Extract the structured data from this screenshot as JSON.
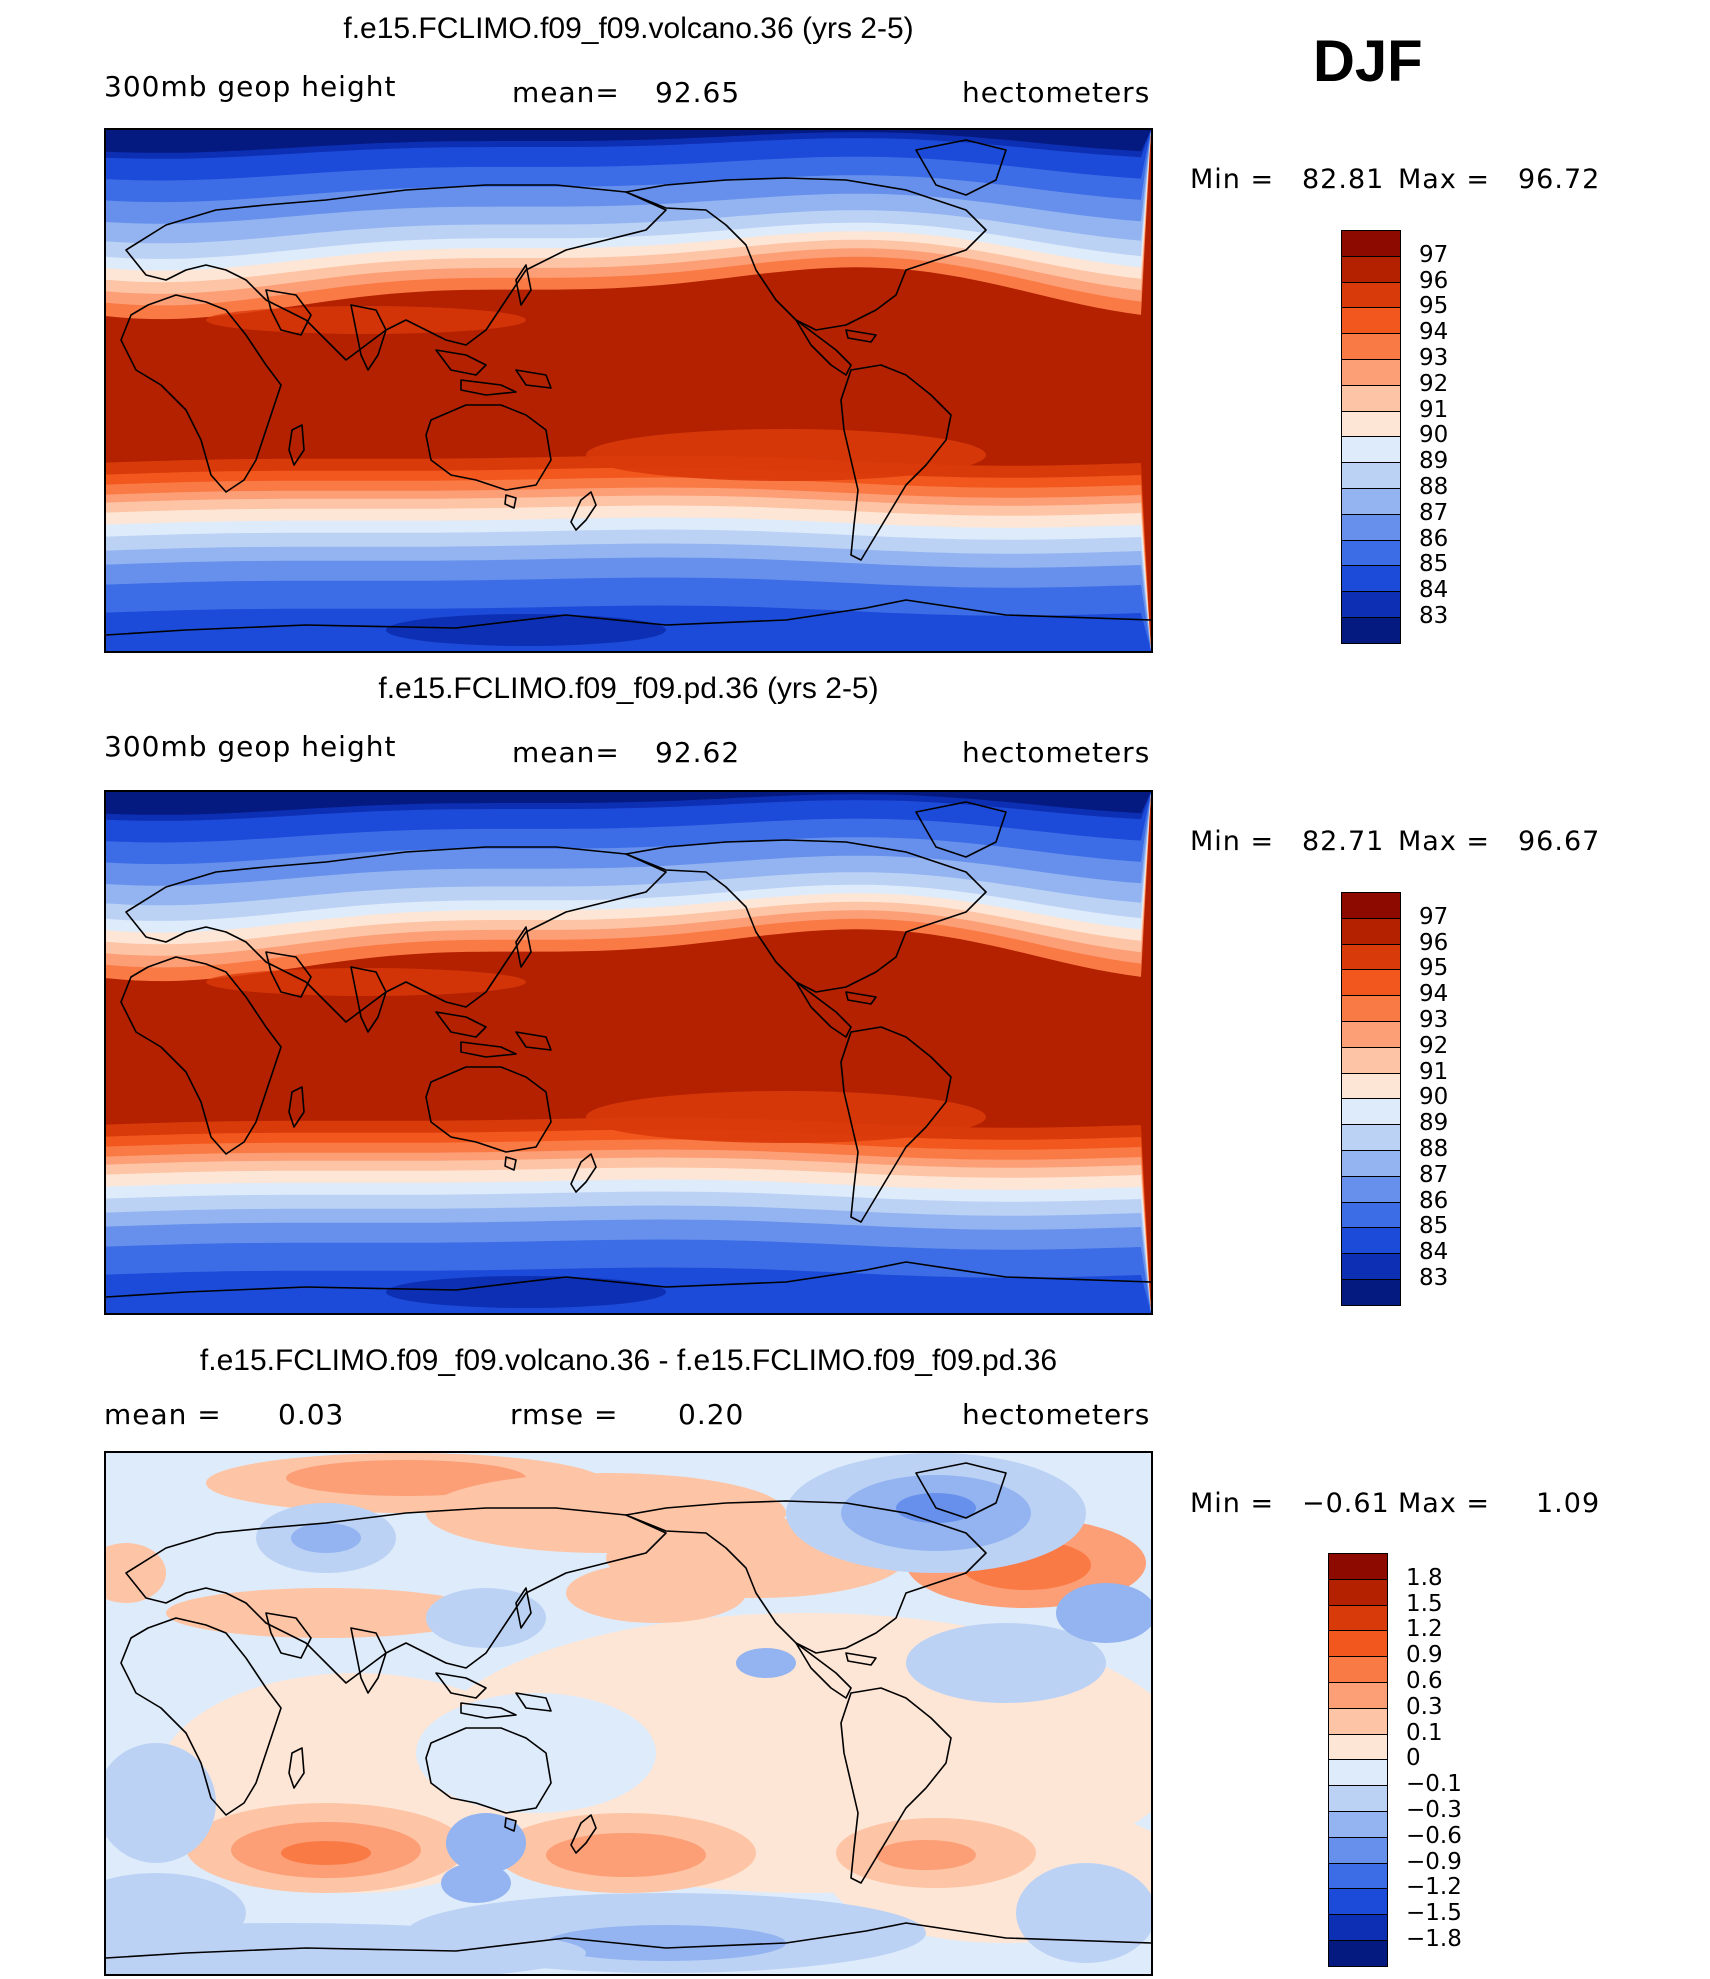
{
  "season": "DJF",
  "units": "hectometers",
  "panels": [
    {
      "id": "volcano",
      "title": "f.e15.FCLIMO.f09_f09.volcano.36 (yrs 2-5)",
      "variable": "300mb geop height",
      "stat1_label": "mean=",
      "stat1_value": "92.65",
      "min_label": "Min =",
      "min_value": "82.81",
      "max_label": "Max =",
      "max_value": "96.72",
      "colorbar_labels": [
        "97",
        "96",
        "95",
        "94",
        "93",
        "92",
        "91",
        "90",
        "89",
        "88",
        "87",
        "86",
        "85",
        "84",
        "83"
      ]
    },
    {
      "id": "pd",
      "title": "f.e15.FCLIMO.f09_f09.pd.36 (yrs 2-5)",
      "variable": "300mb geop height",
      "stat1_label": "mean=",
      "stat1_value": "92.62",
      "min_label": "Min =",
      "min_value": "82.71",
      "max_label": "Max =",
      "max_value": "96.67",
      "colorbar_labels": [
        "97",
        "96",
        "95",
        "94",
        "93",
        "92",
        "91",
        "90",
        "89",
        "88",
        "87",
        "86",
        "85",
        "84",
        "83"
      ]
    },
    {
      "id": "diff",
      "title": "f.e15.FCLIMO.f09_f09.volcano.36 - f.e15.FCLIMO.f09_f09.pd.36",
      "stat1_label": "mean =",
      "stat1_value": "0.03",
      "stat2_label": "rmse =",
      "stat2_value": "0.20",
      "min_label": "Min =",
      "min_value": "−0.61",
      "max_label": "Max =",
      "max_value": "1.09",
      "colorbar_labels": [
        "1.8",
        "1.5",
        "1.2",
        "0.9",
        "0.6",
        "0.3",
        "0.1",
        "0",
        "−0.1",
        "−0.3",
        "−0.6",
        "−0.9",
        "−1.2",
        "−1.5",
        "−1.8"
      ]
    }
  ],
  "colors": {
    "height_scale": [
      "#8c0a00",
      "#b32100",
      "#d93a0a",
      "#f2581d",
      "#fa7a45",
      "#fc9e76",
      "#fdc4a5",
      "#fee6d6",
      "#deebfa",
      "#bcd2f5",
      "#93b4f0",
      "#6690eb",
      "#3c6ce6",
      "#1c4ad9",
      "#0d2fb3",
      "#051a80"
    ],
    "diff_scale": [
      "#8c0a00",
      "#b32100",
      "#d93a0a",
      "#f2581d",
      "#fa7a45",
      "#fc9e76",
      "#fdc4a5",
      "#fee6d6",
      "#deebfa",
      "#bcd2f5",
      "#93b4f0",
      "#6690eb",
      "#3c6ce6",
      "#1c4ad9",
      "#0d2fb3",
      "#051a80"
    ],
    "coastline": "#000000"
  }
}
